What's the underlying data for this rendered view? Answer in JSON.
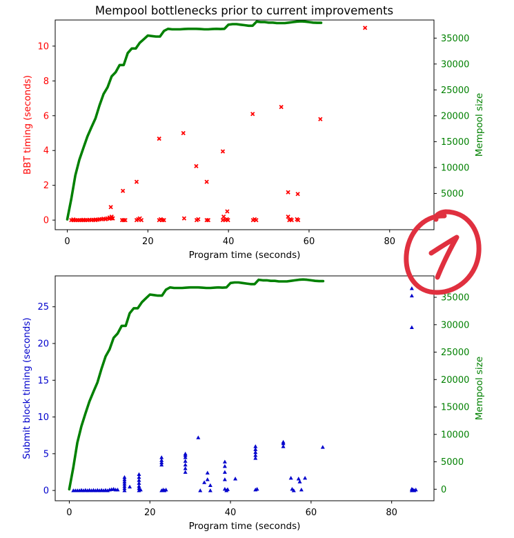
{
  "title": "Mempool bottlenecks prior to current improvements",
  "colors": {
    "bbt": "#ff0000",
    "submit": "#0000cc",
    "mempool": "#008000",
    "annotation": "#e0303f",
    "axis": "#000000"
  },
  "annotation_text": "1",
  "chart_data": [
    {
      "type": "scatter",
      "xlabel": "Program time (seconds)",
      "ylabel": "BBT timing (seconds)",
      "y2label": "Mempool size",
      "xlim": [
        -3,
        91
      ],
      "ylim": [
        -0.55,
        11.5
      ],
      "y2lim": [
        -2000,
        38500
      ],
      "xticks": [
        "0",
        "20",
        "40",
        "60",
        "80"
      ],
      "xtick_values": [
        0,
        20,
        40,
        60,
        80
      ],
      "yticks": [
        "0",
        "2",
        "4",
        "6",
        "8",
        "10"
      ],
      "ytick_values": [
        0,
        2,
        4,
        6,
        8,
        10
      ],
      "y2ticks": [
        "5000",
        "10000",
        "15000",
        "20000",
        "25000",
        "30000",
        "35000"
      ],
      "y2tick_values": [
        5000,
        10000,
        15000,
        20000,
        25000,
        30000,
        35000
      ],
      "marker": "x",
      "scatter": {
        "x": [
          1,
          1.5,
          2,
          2.5,
          3,
          3.5,
          4,
          4.5,
          5,
          5.5,
          6,
          6.5,
          7,
          7.5,
          8,
          8.5,
          9,
          9.5,
          10,
          10.5,
          11,
          11.3,
          10.8,
          13.6,
          14,
          14.4,
          17.2,
          17.6,
          18,
          18.4,
          22.8,
          23.2,
          23.6,
          24,
          29,
          32.1,
          32.5,
          34.6,
          35,
          38.6,
          38.8,
          39.2,
          39.6,
          39.9,
          46.1,
          46.5,
          46.9,
          54.8,
          55.1,
          55.4,
          55.7,
          57,
          57.3,
          1.5,
          4,
          7,
          9.5,
          10.5,
          11,
          13.8,
          17.2,
          22.8,
          28.8,
          32,
          34.6,
          38.6,
          39.7,
          46,
          53.1,
          54.8,
          57.2,
          62.8,
          73.9
        ],
        "y": [
          0,
          0,
          0,
          0,
          0,
          0,
          0,
          0,
          0,
          0.02,
          0,
          0.02,
          0,
          0.02,
          0.05,
          0.05,
          0.08,
          0.05,
          0.1,
          0.15,
          0.2,
          0.1,
          0.75,
          0,
          0,
          0,
          0,
          0.05,
          0.1,
          0,
          0,
          0.05,
          0,
          0,
          0.1,
          0,
          0.05,
          0,
          0,
          0,
          0.2,
          0,
          0.05,
          0,
          0,
          0.05,
          0,
          0.2,
          0,
          0.05,
          0,
          0.05,
          0,
          0.04,
          0.02,
          0.03,
          0.06,
          0.08,
          0.1,
          1.68,
          2.2,
          4.68,
          5,
          3.1,
          2.2,
          3.95,
          0.5,
          6.1,
          6.5,
          1.6,
          1.5,
          5.8,
          11.05
        ]
      },
      "line": {
        "name": "Mempool size",
        "x": [
          0,
          1,
          2,
          3,
          4,
          5,
          6,
          7,
          8,
          9,
          10,
          11,
          12,
          13,
          14,
          15,
          16,
          17,
          18,
          19,
          20,
          21,
          22,
          23,
          24,
          25,
          26,
          27,
          28,
          29,
          30,
          31,
          32,
          33,
          34,
          35,
          36,
          37,
          38,
          39,
          40,
          41,
          42,
          43,
          44,
          45,
          46,
          47,
          48,
          49,
          50,
          51,
          52,
          53,
          54,
          55,
          56,
          57,
          58,
          59,
          60,
          61,
          62,
          63
        ],
        "y": [
          0,
          4000,
          8500,
          11500,
          13800,
          16000,
          17800,
          19500,
          22000,
          24200,
          25500,
          27600,
          28400,
          29800,
          29800,
          32100,
          33000,
          33000,
          34100,
          34800,
          35500,
          35400,
          35300,
          35300,
          36400,
          36800,
          36700,
          36700,
          36700,
          36750,
          36800,
          36800,
          36800,
          36750,
          36700,
          36700,
          36750,
          36800,
          36750,
          36800,
          37600,
          37700,
          37700,
          37600,
          37500,
          37400,
          37400,
          38200,
          38100,
          38100,
          38000,
          38000,
          37900,
          37900,
          37900,
          38000,
          38100,
          38200,
          38250,
          38200,
          38100,
          38000,
          37950,
          37950
        ]
      }
    },
    {
      "type": "scatter",
      "xlabel": "Program time (seconds)",
      "ylabel": "Submit block timing (seconds)",
      "y2label": "Mempool size",
      "xlim": [
        -3.5,
        90.5
      ],
      "ylim": [
        -1.4,
        29.2
      ],
      "y2lim": [
        -2100,
        38900
      ],
      "xticks": [
        "0",
        "20",
        "40",
        "60",
        "80"
      ],
      "xtick_values": [
        0,
        20,
        40,
        60,
        80
      ],
      "yticks": [
        "0",
        "5",
        "10",
        "15",
        "20",
        "25"
      ],
      "ytick_values": [
        0,
        5,
        10,
        15,
        20,
        25
      ],
      "y2ticks": [
        "0",
        "5000",
        "10000",
        "15000",
        "20000",
        "25000",
        "30000",
        "35000"
      ],
      "y2tick_values": [
        0,
        5000,
        10000,
        15000,
        20000,
        25000,
        30000,
        35000
      ],
      "marker": "triangle",
      "scatter": {
        "x": [
          1,
          1.5,
          2,
          2.5,
          3,
          3.5,
          4,
          4.5,
          5,
          5.5,
          6,
          6.5,
          7,
          7.5,
          8,
          8.5,
          9,
          9.5,
          10,
          10.5,
          11,
          11.5,
          12,
          13.7,
          13.7,
          13.7,
          13.7,
          13.7,
          13.7,
          13.7,
          15,
          17.3,
          17.3,
          17.3,
          17.3,
          17.3,
          17.3,
          17.3,
          17.7,
          22.9,
          22.9,
          22.9,
          22.9,
          22.9,
          23.3,
          23.6,
          24,
          28.8,
          28.8,
          28.8,
          28.8,
          28.8,
          28.8,
          28.8,
          32,
          32.5,
          33.5,
          34.3,
          34.3,
          35,
          35,
          38.6,
          38.6,
          38.6,
          38.6,
          38.6,
          39,
          39.3,
          41.2,
          46.2,
          46.2,
          46.2,
          46.2,
          46.2,
          46.2,
          46.6,
          53.1,
          53.1,
          53.1,
          55,
          55.3,
          55.7,
          56.9,
          57.2,
          57.6,
          58.5,
          62.9,
          85,
          85,
          85,
          85,
          85,
          85.3,
          85.6,
          86
        ],
        "y": [
          0,
          0,
          0,
          0,
          0.05,
          0,
          0.05,
          0,
          0.05,
          0,
          0.05,
          0,
          0.05,
          0,
          0.05,
          0,
          0.05,
          0,
          0.1,
          0.15,
          0.2,
          0.1,
          0.1,
          0,
          0.3,
          0.6,
          0.9,
          1.2,
          1.5,
          1.8,
          0.5,
          0,
          0.3,
          0.6,
          1,
          1.4,
          1.8,
          2.2,
          0.1,
          0,
          3.5,
          3.8,
          4.1,
          4.5,
          0.1,
          0,
          0.1,
          2.5,
          3,
          3.5,
          4,
          4.5,
          4.8,
          5,
          7.2,
          0,
          1.1,
          1.5,
          2.4,
          0.7,
          0,
          1.5,
          2.5,
          3.3,
          3.9,
          0.2,
          0,
          0.15,
          1.6,
          4.4,
          4.8,
          5.2,
          5.6,
          6,
          0.1,
          0.2,
          6,
          6.4,
          6.6,
          1.7,
          0.2,
          0,
          1.6,
          1.2,
          0.1,
          1.7,
          5.9,
          0,
          0.2,
          22.2,
          26.5,
          27.5,
          0.1,
          0,
          0.1
        ]
      },
      "line": {
        "name": "Mempool size",
        "x": [
          0,
          1,
          2,
          3,
          4,
          5,
          6,
          7,
          8,
          9,
          10,
          11,
          12,
          13,
          14,
          15,
          16,
          17,
          18,
          19,
          20,
          21,
          22,
          23,
          24,
          25,
          26,
          27,
          28,
          29,
          30,
          31,
          32,
          33,
          34,
          35,
          36,
          37,
          38,
          39,
          40,
          41,
          42,
          43,
          44,
          45,
          46,
          47,
          48,
          49,
          50,
          51,
          52,
          53,
          54,
          55,
          56,
          57,
          58,
          59,
          60,
          61,
          62,
          63
        ],
        "y": [
          0,
          4000,
          8500,
          11500,
          13800,
          16000,
          17800,
          19500,
          22000,
          24200,
          25500,
          27600,
          28400,
          29800,
          29800,
          32100,
          33000,
          33000,
          34100,
          34800,
          35500,
          35400,
          35300,
          35300,
          36400,
          36800,
          36700,
          36700,
          36700,
          36750,
          36800,
          36800,
          36800,
          36750,
          36700,
          36700,
          36750,
          36800,
          36750,
          36800,
          37600,
          37700,
          37700,
          37600,
          37500,
          37400,
          37400,
          38200,
          38100,
          38100,
          38000,
          38000,
          37900,
          37900,
          37900,
          38000,
          38100,
          38200,
          38250,
          38200,
          38100,
          38000,
          37950,
          37950
        ]
      }
    }
  ]
}
